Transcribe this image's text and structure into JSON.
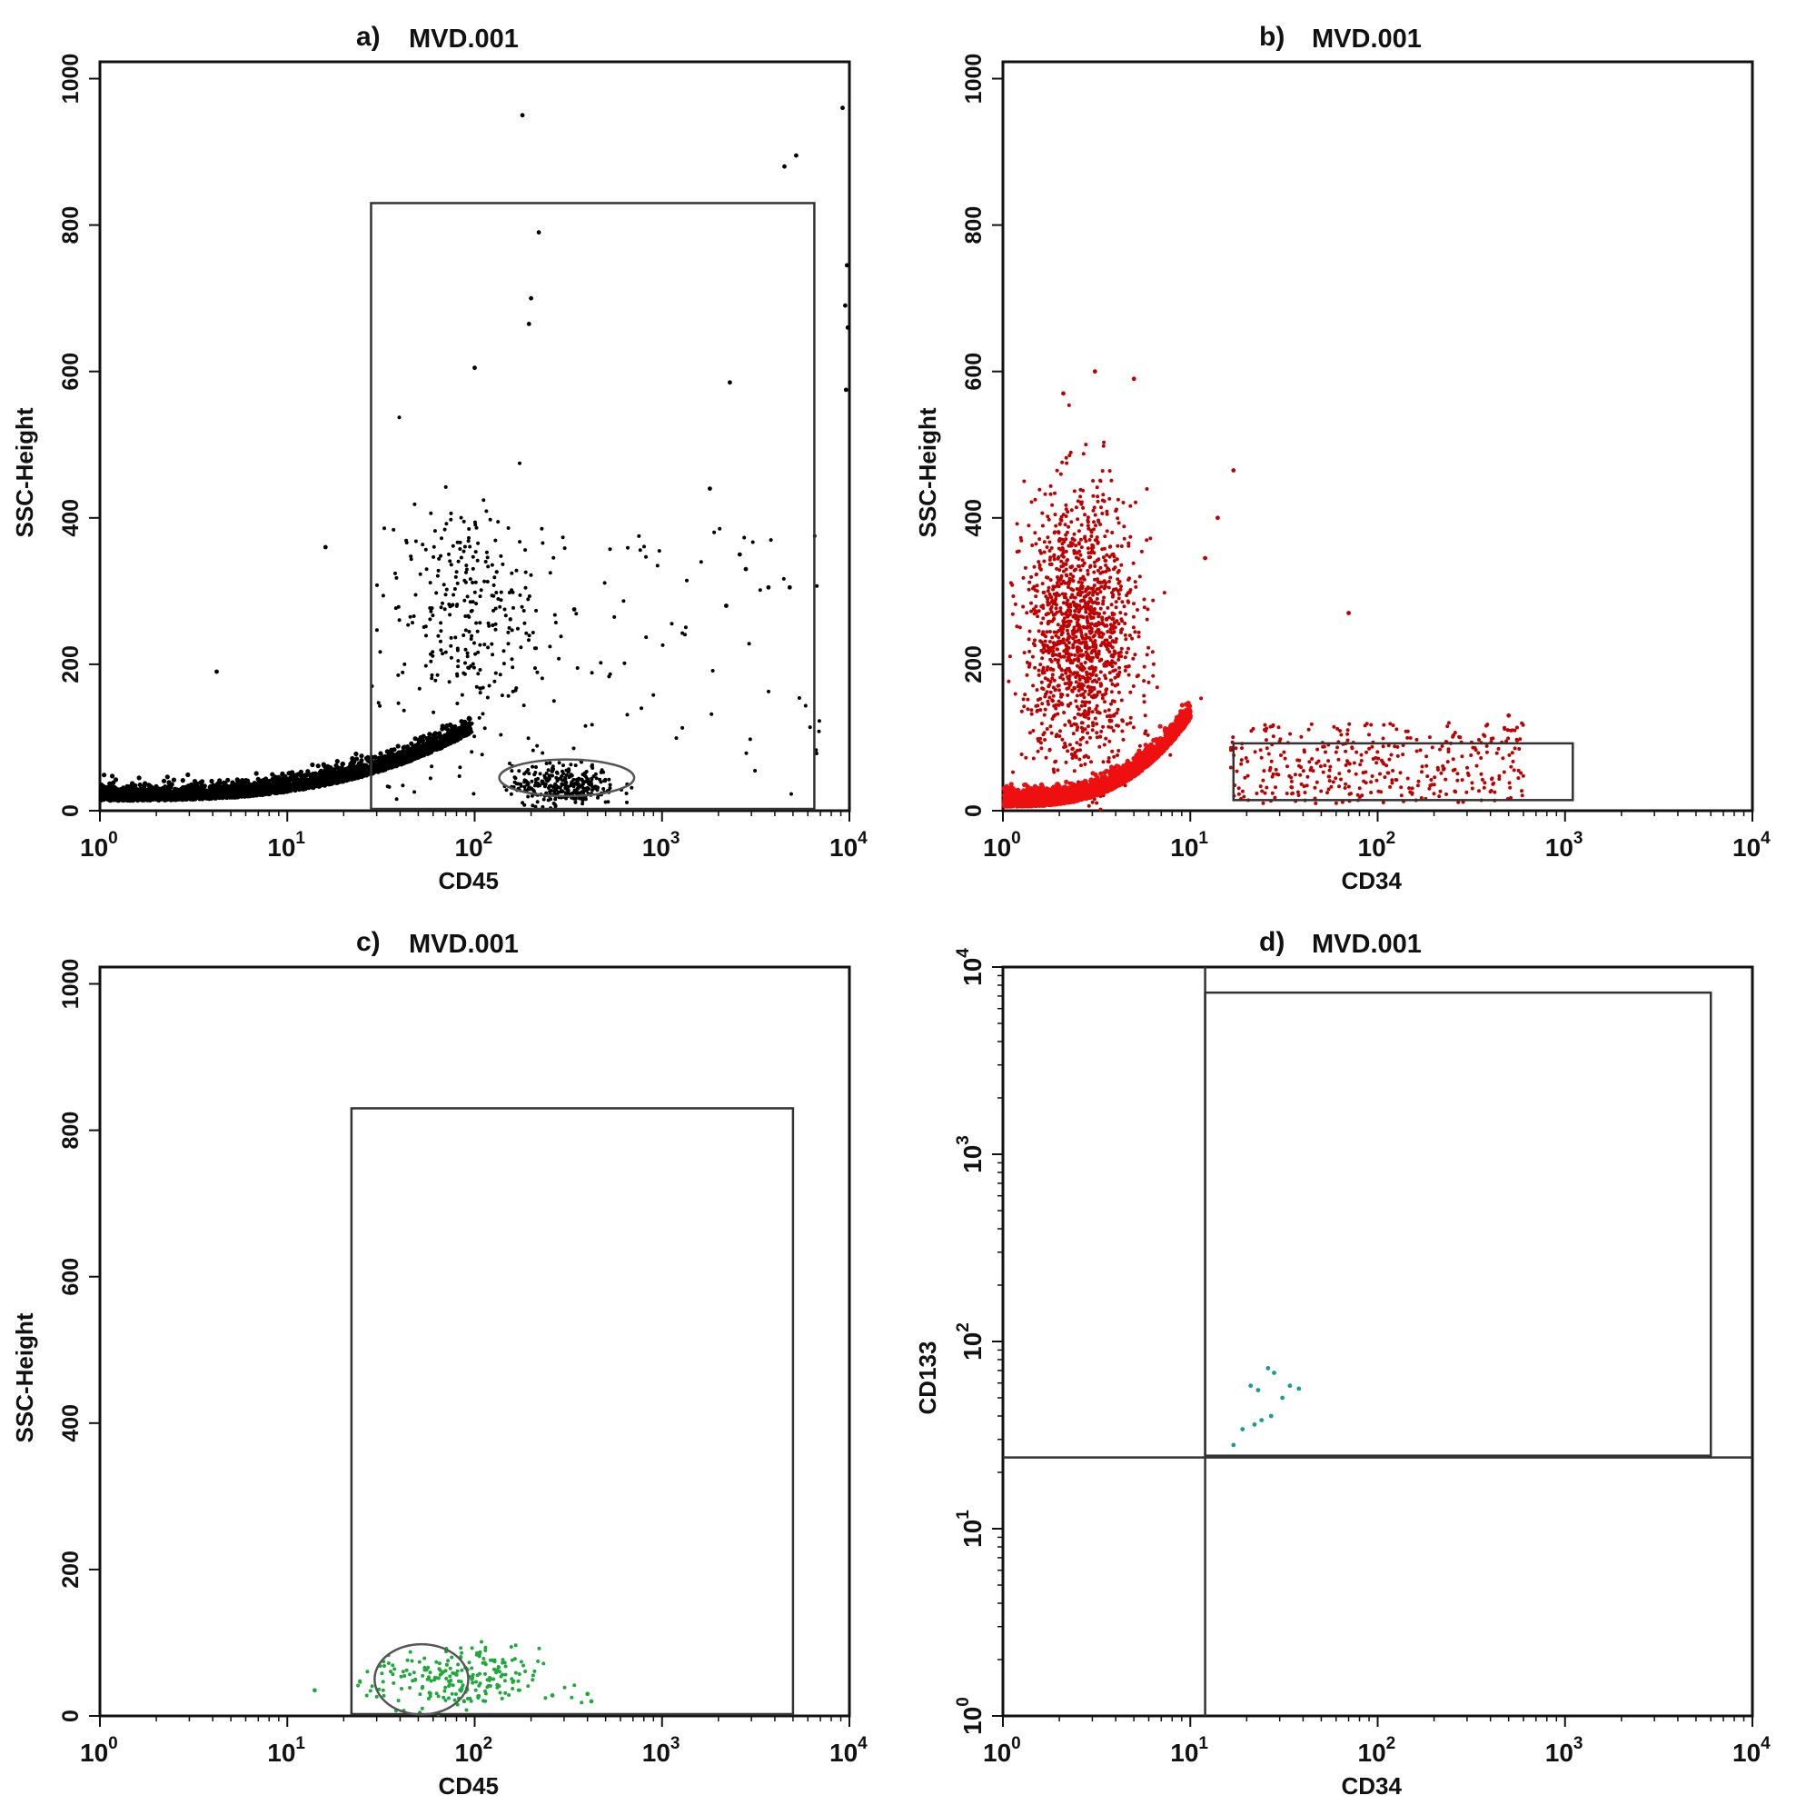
{
  "chart_data": [
    {
      "type": "scatter",
      "panel_label": "a)",
      "title": "MVD.001",
      "xlabel": "CD45",
      "ylabel": "SSC-Height",
      "xscale": "log",
      "xlim": [
        1,
        10000
      ],
      "ylim": [
        0,
        1023
      ],
      "xticks": [
        {
          "v": 1,
          "b": "10",
          "e": "0"
        },
        {
          "v": 10,
          "b": "10",
          "e": "1"
        },
        {
          "v": 100,
          "b": "10",
          "e": "2"
        },
        {
          "v": 1000,
          "b": "10",
          "e": "3"
        },
        {
          "v": 10000,
          "b": "10",
          "e": "4"
        }
      ],
      "yticks": [
        {
          "v": 0,
          "t": "0"
        },
        {
          "v": 200,
          "t": "200"
        },
        {
          "v": 400,
          "t": "400"
        },
        {
          "v": 600,
          "t": "600"
        },
        {
          "v": 800,
          "t": "800"
        },
        {
          "v": 1000,
          "t": "1000"
        }
      ],
      "color": "#000000",
      "grid": false,
      "clusters": [
        {
          "name": "lymph-tail",
          "x_range": [
            1,
            95
          ],
          "y_base": [
            18,
            110
          ],
          "n": 2600
        },
        {
          "name": "granulocytes",
          "x_center": 90,
          "x_spread": 0.18,
          "y_center": 270,
          "y_spread": 75,
          "n": 260
        },
        {
          "name": "cd45-high-low-ssc",
          "x_center": 300,
          "x_spread": 0.14,
          "y_center": 35,
          "y_spread": 14,
          "n": 320
        },
        {
          "name": "sparse",
          "x_range": [
            30,
            8000
          ],
          "y_range": [
            5,
            400
          ],
          "n": 110
        }
      ],
      "points": [
        [
          180,
          950
        ],
        [
          220,
          790
        ],
        [
          200,
          700
        ],
        [
          195,
          665
        ],
        [
          100,
          605
        ],
        [
          2300,
          585
        ],
        [
          4500,
          880
        ],
        [
          5200,
          895
        ],
        [
          9200,
          960
        ],
        [
          9700,
          745
        ],
        [
          9500,
          690
        ],
        [
          9800,
          660
        ],
        [
          9600,
          575
        ],
        [
          4.2,
          190
        ],
        [
          16,
          360
        ],
        [
          1800,
          440
        ],
        [
          2600,
          350
        ],
        [
          2800,
          330
        ],
        [
          3700,
          305
        ],
        [
          4800,
          305
        ],
        [
          2200,
          280
        ],
        [
          340,
          275
        ]
      ],
      "gates": [
        {
          "kind": "rect",
          "x": [
            28,
            6500
          ],
          "y": [
            0,
            830
          ]
        },
        {
          "kind": "ellipse",
          "x_center": 310,
          "y_center": 45,
          "x_half_decades": 0.36,
          "y_half": 25
        }
      ]
    },
    {
      "type": "scatter",
      "panel_label": "b)",
      "title": "MVD.001",
      "xlabel": "CD34",
      "ylabel": "SSC-Height",
      "xscale": "log",
      "xlim": [
        1,
        10000
      ],
      "ylim": [
        0,
        1023
      ],
      "xticks": [
        {
          "v": 1,
          "b": "10",
          "e": "0"
        },
        {
          "v": 10,
          "b": "10",
          "e": "1"
        },
        {
          "v": 100,
          "b": "10",
          "e": "2"
        },
        {
          "v": 1000,
          "b": "10",
          "e": "3"
        },
        {
          "v": 10000,
          "b": "10",
          "e": "4"
        }
      ],
      "yticks": [
        {
          "v": 0,
          "t": "0"
        },
        {
          "v": 200,
          "t": "200"
        },
        {
          "v": 400,
          "t": "400"
        },
        {
          "v": 600,
          "t": "600"
        },
        {
          "v": 800,
          "t": "800"
        },
        {
          "v": 1000,
          "t": "1000"
        }
      ],
      "color": "#c00000",
      "bright_color": "#ee1010",
      "grid": false,
      "clusters": [
        {
          "name": "granulocytes",
          "x_center": 2.6,
          "x_spread": 0.15,
          "y_center": 240,
          "y_spread": 95,
          "n": 1400
        },
        {
          "name": "dense-low",
          "x_range": [
            1,
            10
          ],
          "y_base": [
            10,
            130
          ],
          "n": 3200
        },
        {
          "name": "cd34-pos",
          "x_range": [
            16,
            600
          ],
          "y_range": [
            10,
            120
          ],
          "n": 380
        }
      ],
      "points": [
        [
          3.1,
          600
        ],
        [
          5.0,
          590
        ],
        [
          2.1,
          570
        ],
        [
          17,
          465
        ],
        [
          14,
          400
        ],
        [
          12,
          345
        ],
        [
          70,
          270
        ],
        [
          500,
          130
        ]
      ],
      "gates": [
        {
          "kind": "rect",
          "x": [
            17,
            1100
          ],
          "y": [
            12,
            92
          ]
        }
      ]
    },
    {
      "type": "scatter",
      "panel_label": "c)",
      "title": "MVD.001",
      "xlabel": "CD45",
      "ylabel": "SSC-Height",
      "xscale": "log",
      "xlim": [
        1,
        10000
      ],
      "ylim": [
        0,
        1023
      ],
      "xticks": [
        {
          "v": 1,
          "b": "10",
          "e": "0"
        },
        {
          "v": 10,
          "b": "10",
          "e": "1"
        },
        {
          "v": 100,
          "b": "10",
          "e": "2"
        },
        {
          "v": 1000,
          "b": "10",
          "e": "3"
        },
        {
          "v": 10000,
          "b": "10",
          "e": "4"
        }
      ],
      "yticks": [
        {
          "v": 0,
          "t": "0"
        },
        {
          "v": 200,
          "t": "200"
        },
        {
          "v": 400,
          "t": "400"
        },
        {
          "v": 600,
          "t": "600"
        },
        {
          "v": 800,
          "t": "800"
        },
        {
          "v": 1000,
          "t": "1000"
        }
      ],
      "color": "#1fa83c",
      "grid": false,
      "clusters": [
        {
          "name": "cd34-gated",
          "x_center": 80,
          "x_spread": 0.22,
          "y_center": 48,
          "y_spread": 22,
          "n": 230
        }
      ],
      "points": [
        [
          14,
          35
        ],
        [
          260,
          28
        ],
        [
          400,
          30
        ],
        [
          420,
          20
        ]
      ],
      "gates": [
        {
          "kind": "rect",
          "x": [
            22,
            5000
          ],
          "y": [
            0,
            830
          ]
        },
        {
          "kind": "ellipse",
          "x_center": 52,
          "y_center": 50,
          "x_half_decades": 0.25,
          "y_half": 48
        }
      ]
    },
    {
      "type": "scatter",
      "panel_label": "d)",
      "title": "MVD.001",
      "xlabel": "CD34",
      "ylabel": "CD133",
      "xscale": "log",
      "yscale": "log",
      "xlim": [
        1,
        10000
      ],
      "ylim": [
        1,
        10000
      ],
      "xticks": [
        {
          "v": 1,
          "b": "10",
          "e": "0"
        },
        {
          "v": 10,
          "b": "10",
          "e": "1"
        },
        {
          "v": 100,
          "b": "10",
          "e": "2"
        },
        {
          "v": 1000,
          "b": "10",
          "e": "3"
        },
        {
          "v": 10000,
          "b": "10",
          "e": "4"
        }
      ],
      "yticks": [
        {
          "v": 1,
          "b": "10",
          "e": "0"
        },
        {
          "v": 10,
          "b": "10",
          "e": "1"
        },
        {
          "v": 100,
          "b": "10",
          "e": "2"
        },
        {
          "v": 1000,
          "b": "10",
          "e": "3"
        },
        {
          "v": 10000,
          "b": "10",
          "e": "4"
        }
      ],
      "color": "#1a9a9a",
      "grid": false,
      "points": [
        [
          26,
          72
        ],
        [
          28,
          68
        ],
        [
          21,
          58
        ],
        [
          23,
          55
        ],
        [
          34,
          58
        ],
        [
          38,
          56
        ],
        [
          31,
          50
        ],
        [
          27,
          40
        ],
        [
          24,
          38
        ],
        [
          22,
          36
        ],
        [
          19,
          34
        ],
        [
          17,
          28
        ]
      ],
      "gates": [
        {
          "kind": "hline",
          "y": 24
        },
        {
          "kind": "vline",
          "x": 12
        },
        {
          "kind": "rect",
          "x": [
            12,
            6000
          ],
          "y": [
            24,
            7300
          ]
        }
      ]
    }
  ]
}
